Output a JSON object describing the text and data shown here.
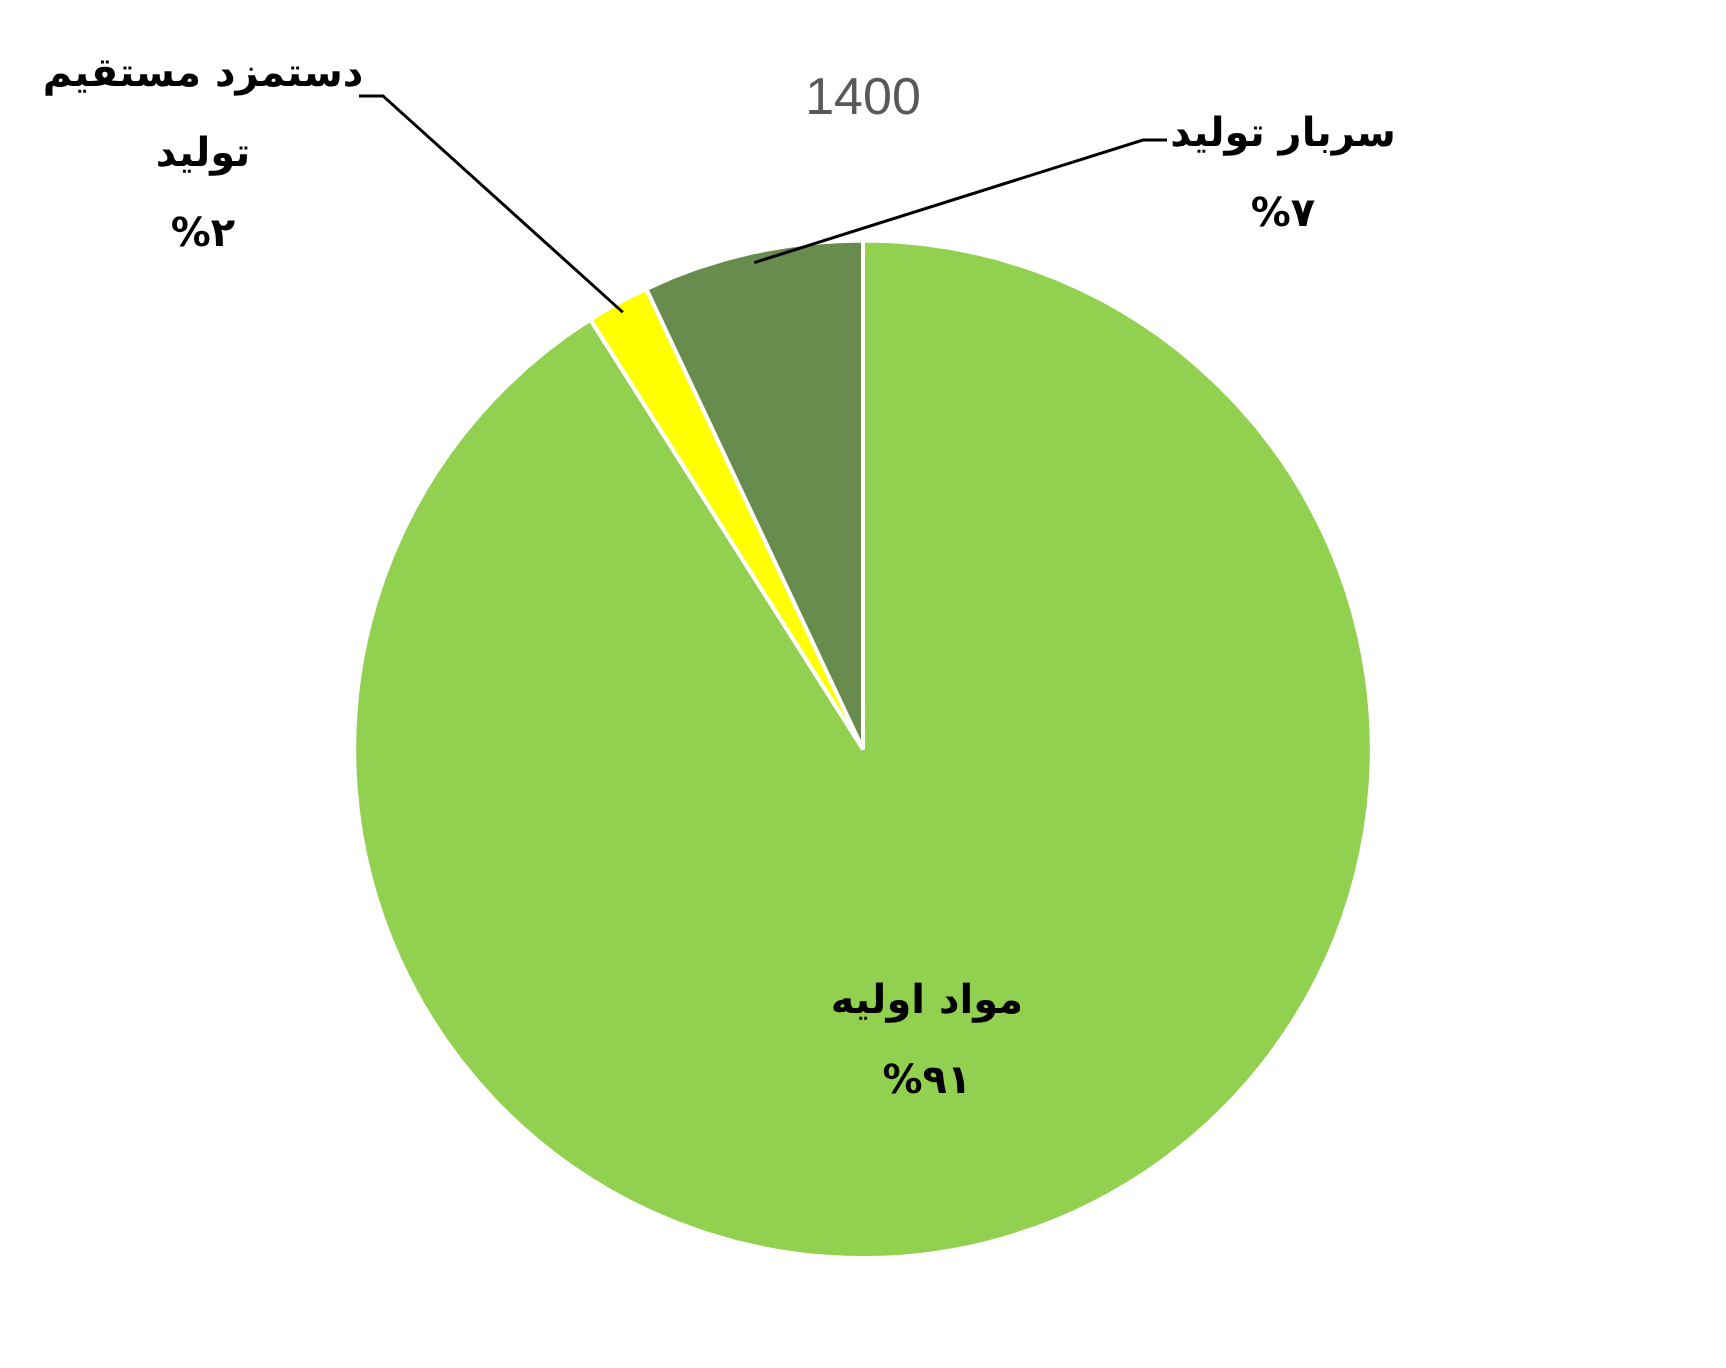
{
  "chart_data": {
    "type": "pie",
    "title": "1400",
    "categories": [
      "مواد اولیه",
      "دستمزد مستقیم تولید",
      "سربار تولید"
    ],
    "values": [
      91,
      2,
      7
    ],
    "colors": [
      "#92d050",
      "#ffff00",
      "#688c4e"
    ],
    "value_labels": [
      "%۹۱",
      "%۲",
      "%۷"
    ],
    "legend": false
  }
}
